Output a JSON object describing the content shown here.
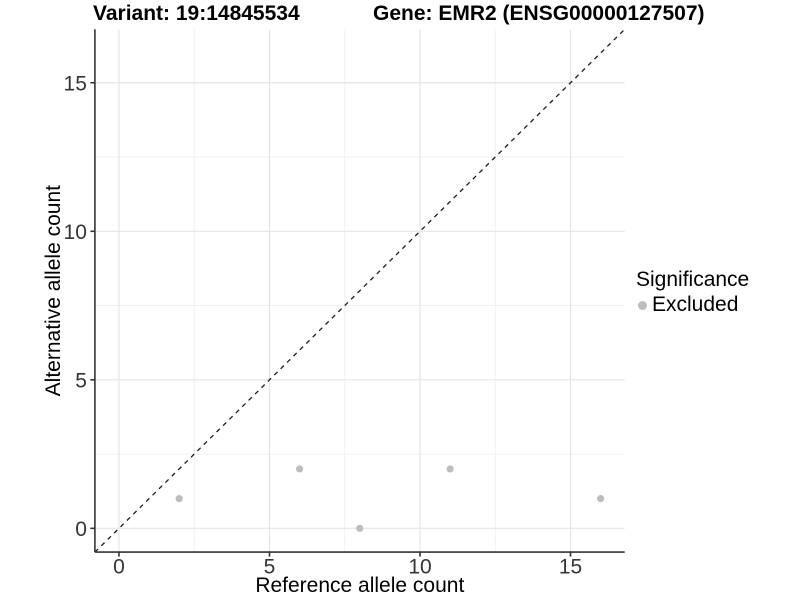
{
  "title": {
    "variant": "Variant: 19:14845534",
    "gene": "Gene: EMR2 (ENSG00000127507)"
  },
  "axes": {
    "x_label": "Reference allele count",
    "y_label": "Alternative allele count"
  },
  "legend": {
    "title": "Significance",
    "items": [
      {
        "label": "Excluded",
        "color": "#bdbdbd"
      }
    ]
  },
  "colors": {
    "background": "#ffffff",
    "grid_major": "#e5e5e5",
    "grid_minor": "#f0f0f0",
    "axis_line": "#333333",
    "tick_text": "#353535",
    "point": "#bdbdbd",
    "reference_line": "#1a1a1a"
  },
  "chart_data": {
    "type": "scatter",
    "title": "Variant: 19:14845534   Gene: EMR2 (ENSG00000127507)",
    "xlabel": "Reference allele count",
    "ylabel": "Alternative allele count",
    "xlim": [
      -0.8,
      16.8
    ],
    "ylim": [
      -0.8,
      16.8
    ],
    "x_ticks": [
      0,
      5,
      10,
      15
    ],
    "y_ticks": [
      0,
      5,
      10,
      15
    ],
    "x_minor_ticks": [
      2.5,
      7.5,
      12.5
    ],
    "y_minor_ticks": [
      2.5,
      7.5,
      12.5
    ],
    "grid": true,
    "legend_position": "right",
    "series": [
      {
        "name": "Excluded",
        "color": "#bdbdbd",
        "points": [
          [
            2,
            1
          ],
          [
            6,
            2
          ],
          [
            8,
            0
          ],
          [
            11,
            2
          ],
          [
            16,
            1
          ]
        ]
      }
    ],
    "reference_line": {
      "slope": 1,
      "intercept": 0,
      "style": "dashed",
      "color": "#1a1a1a"
    }
  }
}
